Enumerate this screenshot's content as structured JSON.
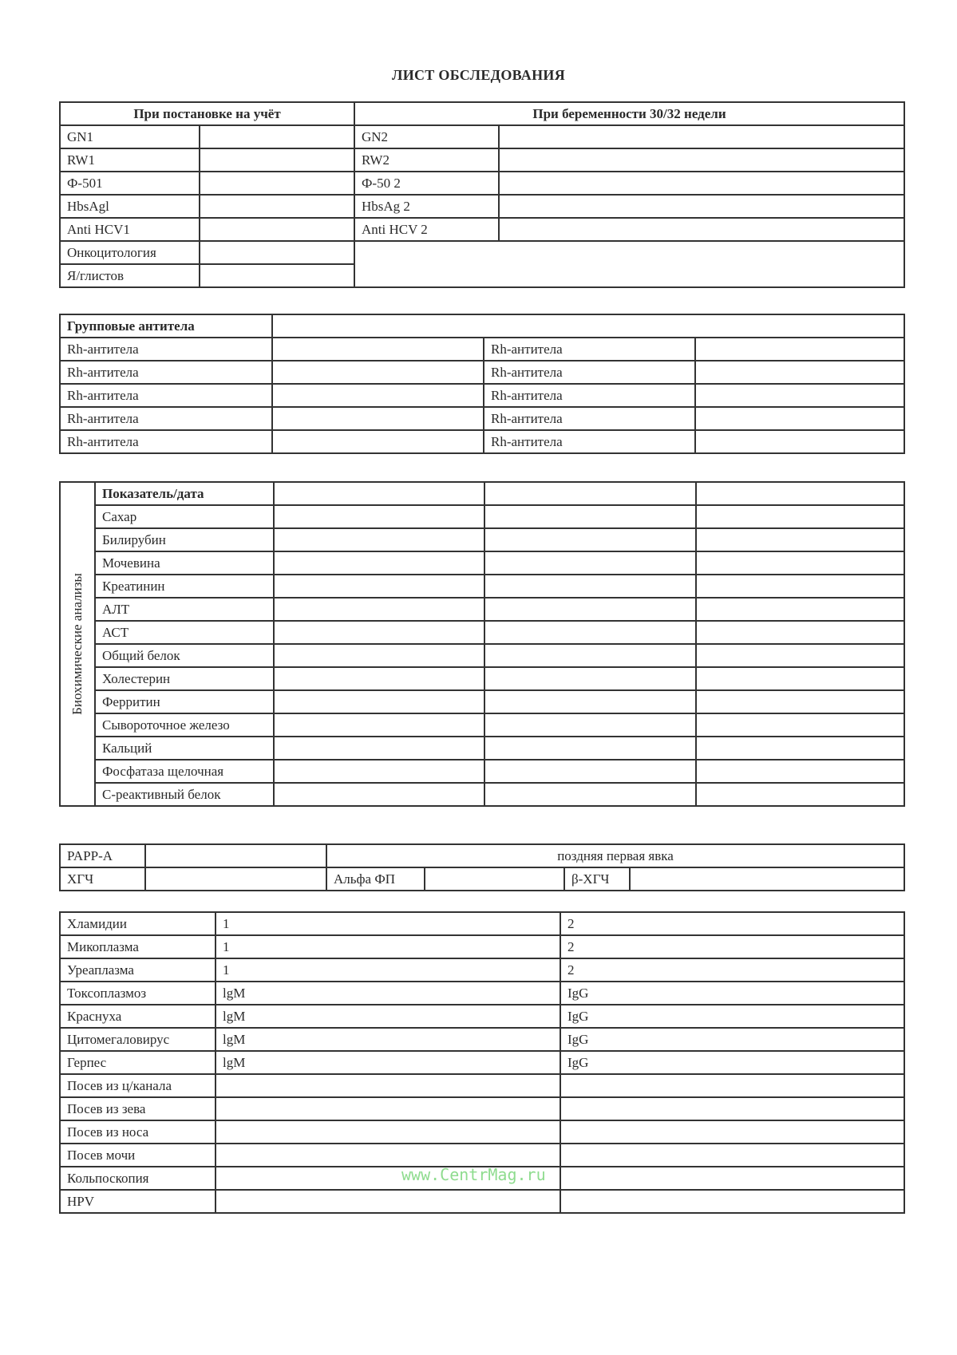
{
  "title": "ЛИСТ ОБСЛЕДОВАНИЯ",
  "registration": {
    "header_left": "При постановке на учёт",
    "header_right": "При беременности 30/32 недели",
    "left_rows": [
      "GN1",
      "RW1",
      "Ф-501",
      "HbsAgl",
      "Anti HCV1",
      "Онкоцитология",
      "Я/глистов"
    ],
    "right_rows": [
      "GN2",
      "RW2",
      "Ф-50 2",
      "HbsAg 2",
      "Anti HCV 2"
    ]
  },
  "antibodies": {
    "header": "Групповые антитела",
    "rows": [
      [
        "Rh-антитела",
        "Rh-антитела"
      ],
      [
        "Rh-антитела",
        "Rh-антитела"
      ],
      [
        "Rh-антитела",
        "Rh-антитела"
      ],
      [
        "Rh-антитела",
        "Rh-антитела"
      ],
      [
        "Rh-антитела",
        "Rh-антитела"
      ]
    ]
  },
  "biochem": {
    "side_label": "Биохимические анализы",
    "header": "Показатель/дата",
    "rows": [
      "Сахар",
      "Билирубин",
      "Мочевина",
      "Креатинин",
      "АЛТ",
      "АСТ",
      "Общий белок",
      "Холестерин",
      "Ферритин",
      "Сывороточное железо",
      "Кальций",
      "Фосфатаза щелочная",
      "С-реактивный белок"
    ]
  },
  "screening": {
    "papp": "PAPP-A",
    "late_visit": "поздняя первая явка",
    "hcg": "ХГЧ",
    "afp": "Альфа ФП",
    "bhcg": "β-ХГЧ"
  },
  "infections": {
    "rows": [
      [
        "Хламидии",
        "1",
        "2"
      ],
      [
        "Микоплазма",
        "1",
        "2"
      ],
      [
        "Уреаплазма",
        "1",
        "2"
      ],
      [
        "Токсоплазмоз",
        "lgM",
        "IgG"
      ],
      [
        "Краснуха",
        "lgM",
        "IgG"
      ],
      [
        "Цитомегаловирус",
        "lgM",
        "IgG"
      ],
      [
        "Герпес",
        "lgM",
        "IgG"
      ],
      [
        "Посев из ц/канала",
        "",
        ""
      ],
      [
        "Посев из зева",
        "",
        ""
      ],
      [
        "Посев из носа",
        "",
        ""
      ],
      [
        "Посев мочи",
        "",
        ""
      ],
      [
        "Кольпоскопия",
        "",
        ""
      ],
      [
        "HPV",
        "",
        ""
      ]
    ]
  },
  "watermark": "www.CentrMag.ru"
}
